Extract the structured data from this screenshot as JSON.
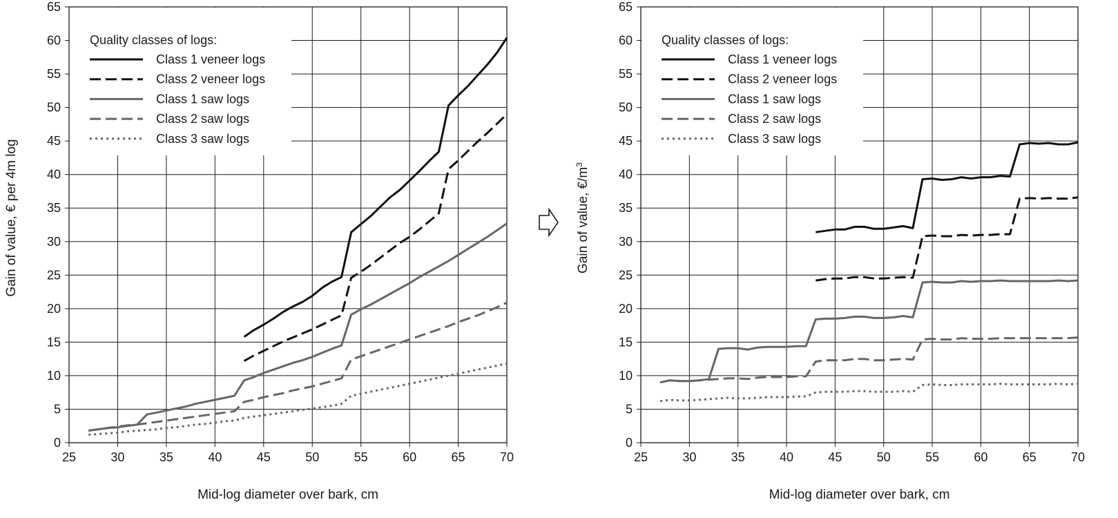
{
  "colors": {
    "black": "#111111",
    "gray": "#666666",
    "grid": "#1a1a1a",
    "arrow_fill": "#ffffff"
  },
  "arrow": {
    "icon": "right-arrow-icon"
  },
  "chart_data": [
    {
      "type": "line",
      "title": "",
      "xlabel": "Mid-log diameter over bark, cm",
      "ylabel": "Gain of value, € per 4m log",
      "xlim": [
        25,
        70
      ],
      "ylim": [
        0,
        65
      ],
      "xticks": [
        "25",
        "30",
        "35",
        "40",
        "45",
        "50",
        "55",
        "60",
        "65",
        "70"
      ],
      "yticks": [
        "0",
        "5",
        "10",
        "15",
        "20",
        "25",
        "30",
        "35",
        "40",
        "45",
        "50",
        "55",
        "60",
        "65"
      ],
      "grid": true,
      "legend": {
        "title": "Quality classes of logs:",
        "placement": "top-left",
        "entries": [
          "Class 1 veneer logs",
          "Class 2 veneer logs",
          "Class 1 saw logs",
          "Class 2 saw logs",
          "Class 3 saw logs"
        ]
      },
      "series": [
        {
          "name": "Class 1 veneer logs",
          "color": "#111111",
          "dash": "solid",
          "x": [
            43,
            44,
            45,
            46,
            47,
            48,
            49,
            50,
            51,
            52,
            53,
            54,
            55,
            56,
            57,
            58,
            59,
            60,
            61,
            62,
            63,
            64,
            65,
            66,
            67,
            68,
            69,
            70
          ],
          "y": [
            15.8,
            16.8,
            17.6,
            18.5,
            19.5,
            20.3,
            21.0,
            21.9,
            23.1,
            24.0,
            24.7,
            31.4,
            32.6,
            33.8,
            35.2,
            36.6,
            37.7,
            39.1,
            40.5,
            42.0,
            43.4,
            50.3,
            51.8,
            53.2,
            54.8,
            56.4,
            58.2,
            60.4
          ]
        },
        {
          "name": "Class 2 veneer logs",
          "color": "#111111",
          "dash": "long",
          "x": [
            43,
            44,
            45,
            46,
            47,
            48,
            49,
            50,
            51,
            52,
            53,
            54,
            55,
            56,
            57,
            58,
            59,
            60,
            61,
            62,
            63,
            64,
            65,
            66,
            67,
            68,
            69,
            70
          ],
          "y": [
            12.2,
            13.0,
            13.7,
            14.4,
            15.1,
            15.7,
            16.3,
            16.9,
            17.6,
            18.3,
            19.0,
            24.6,
            25.5,
            26.5,
            27.6,
            28.7,
            29.8,
            30.7,
            31.8,
            33.0,
            34.2,
            40.8,
            42.1,
            43.5,
            44.9,
            46.2,
            47.6,
            49.0
          ]
        },
        {
          "name": "Class 1 saw logs",
          "color": "#666666",
          "dash": "solid",
          "x": [
            27,
            28,
            29,
            30,
            31,
            32,
            33,
            34,
            35,
            36,
            37,
            38,
            39,
            40,
            41,
            42,
            43,
            44,
            45,
            46,
            47,
            48,
            49,
            50,
            51,
            52,
            53,
            54,
            55,
            56,
            57,
            58,
            59,
            60,
            61,
            62,
            63,
            64,
            65,
            66,
            67,
            68,
            69,
            70
          ],
          "y": [
            1.8,
            2.0,
            2.2,
            2.3,
            2.5,
            2.7,
            4.2,
            4.5,
            4.8,
            5.1,
            5.4,
            5.8,
            6.1,
            6.4,
            6.7,
            7.0,
            9.3,
            9.8,
            10.4,
            10.9,
            11.4,
            11.9,
            12.3,
            12.8,
            13.4,
            14.0,
            14.5,
            19.1,
            19.9,
            20.6,
            21.4,
            22.2,
            23.0,
            23.8,
            24.7,
            25.5,
            26.3,
            27.1,
            28.0,
            28.9,
            29.8,
            30.7,
            31.7,
            32.7
          ]
        },
        {
          "name": "Class 2 saw logs",
          "color": "#666666",
          "dash": "long",
          "x": [
            27,
            28,
            29,
            30,
            31,
            32,
            33,
            34,
            35,
            36,
            37,
            38,
            39,
            40,
            41,
            42,
            43,
            44,
            45,
            46,
            47,
            48,
            49,
            50,
            51,
            52,
            53,
            54,
            55,
            56,
            57,
            58,
            59,
            60,
            61,
            62,
            63,
            64,
            65,
            66,
            67,
            68,
            69,
            70
          ],
          "y": [
            1.8,
            2.0,
            2.2,
            2.4,
            2.6,
            2.7,
            2.9,
            3.1,
            3.3,
            3.5,
            3.7,
            3.9,
            4.1,
            4.3,
            4.5,
            4.7,
            6.1,
            6.4,
            6.8,
            7.1,
            7.4,
            7.8,
            8.1,
            8.4,
            8.8,
            9.2,
            9.6,
            12.4,
            12.9,
            13.4,
            13.9,
            14.4,
            14.9,
            15.4,
            15.9,
            16.4,
            16.9,
            17.4,
            18.0,
            18.5,
            19.0,
            19.6,
            20.2,
            20.9
          ]
        },
        {
          "name": "Class 3 saw logs",
          "color": "#666666",
          "dash": "dotted",
          "x": [
            27,
            28,
            29,
            30,
            31,
            32,
            33,
            34,
            35,
            36,
            37,
            38,
            39,
            40,
            41,
            42,
            43,
            44,
            45,
            46,
            47,
            48,
            49,
            50,
            51,
            52,
            53,
            54,
            55,
            56,
            57,
            58,
            59,
            60,
            61,
            62,
            63,
            64,
            65,
            66,
            67,
            68,
            69,
            70
          ],
          "y": [
            1.2,
            1.3,
            1.4,
            1.5,
            1.7,
            1.8,
            1.9,
            2.0,
            2.2,
            2.3,
            2.5,
            2.7,
            2.8,
            3.0,
            3.2,
            3.3,
            3.7,
            3.9,
            4.1,
            4.3,
            4.5,
            4.7,
            4.9,
            5.1,
            5.3,
            5.5,
            5.8,
            7.0,
            7.3,
            7.6,
            7.9,
            8.2,
            8.5,
            8.8,
            9.1,
            9.4,
            9.7,
            10.0,
            10.3,
            10.6,
            10.9,
            11.2,
            11.5,
            11.8
          ]
        }
      ]
    },
    {
      "type": "line",
      "title": "",
      "xlabel": "Mid-log diameter over bark, cm",
      "ylabel": "Gain of value, €/m",
      "ylabel_sup": "3",
      "xlim": [
        25,
        70
      ],
      "ylim": [
        0,
        65
      ],
      "xticks": [
        "25",
        "30",
        "35",
        "40",
        "45",
        "50",
        "55",
        "60",
        "65",
        "70"
      ],
      "yticks": [
        "0",
        "5",
        "10",
        "15",
        "20",
        "25",
        "30",
        "35",
        "40",
        "45",
        "50",
        "55",
        "60",
        "65"
      ],
      "grid": true,
      "legend": {
        "title": "Quality classes of logs:",
        "placement": "top-left",
        "entries": [
          "Class 1 veneer logs",
          "Class 2 veneer logs",
          "Class 1 saw logs",
          "Class 2 saw logs",
          "Class 3 saw logs"
        ]
      },
      "series": [
        {
          "name": "Class 1 veneer logs",
          "color": "#111111",
          "dash": "solid",
          "x": [
            43,
            44,
            45,
            46,
            47,
            48,
            49,
            50,
            51,
            52,
            53,
            54,
            55,
            56,
            57,
            58,
            59,
            60,
            61,
            62,
            63,
            64,
            65,
            66,
            67,
            68,
            69,
            70
          ],
          "y": [
            31.4,
            31.6,
            31.8,
            31.8,
            32.2,
            32.2,
            31.9,
            31.9,
            32.1,
            32.3,
            32.0,
            39.3,
            39.4,
            39.2,
            39.3,
            39.6,
            39.4,
            39.6,
            39.6,
            39.8,
            39.7,
            44.5,
            44.7,
            44.6,
            44.7,
            44.5,
            44.5,
            44.8
          ]
        },
        {
          "name": "Class 2 veneer logs",
          "color": "#111111",
          "dash": "long",
          "x": [
            43,
            44,
            45,
            46,
            47,
            48,
            49,
            50,
            51,
            52,
            53,
            54,
            55,
            56,
            57,
            58,
            59,
            60,
            61,
            62,
            63,
            64,
            65,
            66,
            67,
            68,
            69,
            70
          ],
          "y": [
            24.2,
            24.4,
            24.5,
            24.5,
            24.7,
            24.7,
            24.5,
            24.5,
            24.6,
            24.7,
            24.6,
            30.8,
            30.9,
            30.8,
            30.8,
            31.0,
            30.9,
            31.0,
            31.0,
            31.1,
            31.1,
            36.4,
            36.5,
            36.4,
            36.5,
            36.4,
            36.4,
            36.6
          ]
        },
        {
          "name": "Class 1 saw logs",
          "color": "#666666",
          "dash": "solid",
          "x": [
            27,
            28,
            29,
            30,
            31,
            32,
            33,
            34,
            35,
            36,
            37,
            38,
            39,
            40,
            41,
            42,
            43,
            44,
            45,
            46,
            47,
            48,
            49,
            50,
            51,
            52,
            53,
            54,
            55,
            56,
            57,
            58,
            59,
            60,
            61,
            62,
            63,
            64,
            65,
            66,
            67,
            68,
            69,
            70
          ],
          "y": [
            9.0,
            9.3,
            9.2,
            9.2,
            9.3,
            9.5,
            14.0,
            14.1,
            14.1,
            13.9,
            14.2,
            14.3,
            14.3,
            14.3,
            14.4,
            14.4,
            18.4,
            18.5,
            18.5,
            18.6,
            18.8,
            18.8,
            18.6,
            18.6,
            18.7,
            18.9,
            18.7,
            23.9,
            24.0,
            23.9,
            23.9,
            24.1,
            24.0,
            24.1,
            24.1,
            24.2,
            24.1,
            24.1,
            24.1,
            24.1,
            24.1,
            24.2,
            24.1,
            24.2
          ]
        },
        {
          "name": "Class 2 saw logs",
          "color": "#666666",
          "dash": "long",
          "x": [
            27,
            28,
            29,
            30,
            31,
            32,
            33,
            34,
            35,
            36,
            37,
            38,
            39,
            40,
            41,
            42,
            43,
            44,
            45,
            46,
            47,
            48,
            49,
            50,
            51,
            52,
            53,
            54,
            55,
            56,
            57,
            58,
            59,
            60,
            61,
            62,
            63,
            64,
            65,
            66,
            67,
            68,
            69,
            70
          ],
          "y": [
            9.0,
            9.3,
            9.2,
            9.2,
            9.3,
            9.4,
            9.5,
            9.6,
            9.6,
            9.5,
            9.7,
            9.8,
            9.8,
            9.8,
            9.9,
            9.9,
            12.1,
            12.3,
            12.3,
            12.3,
            12.5,
            12.5,
            12.3,
            12.3,
            12.4,
            12.5,
            12.4,
            15.4,
            15.5,
            15.4,
            15.4,
            15.6,
            15.5,
            15.5,
            15.5,
            15.6,
            15.6,
            15.6,
            15.6,
            15.6,
            15.6,
            15.6,
            15.6,
            15.7
          ]
        },
        {
          "name": "Class 3 saw logs",
          "color": "#666666",
          "dash": "dotted",
          "x": [
            27,
            28,
            29,
            30,
            31,
            32,
            33,
            34,
            35,
            36,
            37,
            38,
            39,
            40,
            41,
            42,
            43,
            44,
            45,
            46,
            47,
            48,
            49,
            50,
            51,
            52,
            53,
            54,
            55,
            56,
            57,
            58,
            59,
            60,
            61,
            62,
            63,
            64,
            65,
            66,
            67,
            68,
            69,
            70
          ],
          "y": [
            6.2,
            6.4,
            6.3,
            6.3,
            6.4,
            6.5,
            6.6,
            6.7,
            6.6,
            6.6,
            6.7,
            6.8,
            6.8,
            6.8,
            6.9,
            6.9,
            7.5,
            7.6,
            7.6,
            7.6,
            7.7,
            7.7,
            7.6,
            7.6,
            7.6,
            7.7,
            7.6,
            8.6,
            8.7,
            8.6,
            8.6,
            8.7,
            8.7,
            8.7,
            8.7,
            8.8,
            8.7,
            8.7,
            8.7,
            8.7,
            8.7,
            8.8,
            8.7,
            8.8
          ]
        }
      ]
    }
  ]
}
